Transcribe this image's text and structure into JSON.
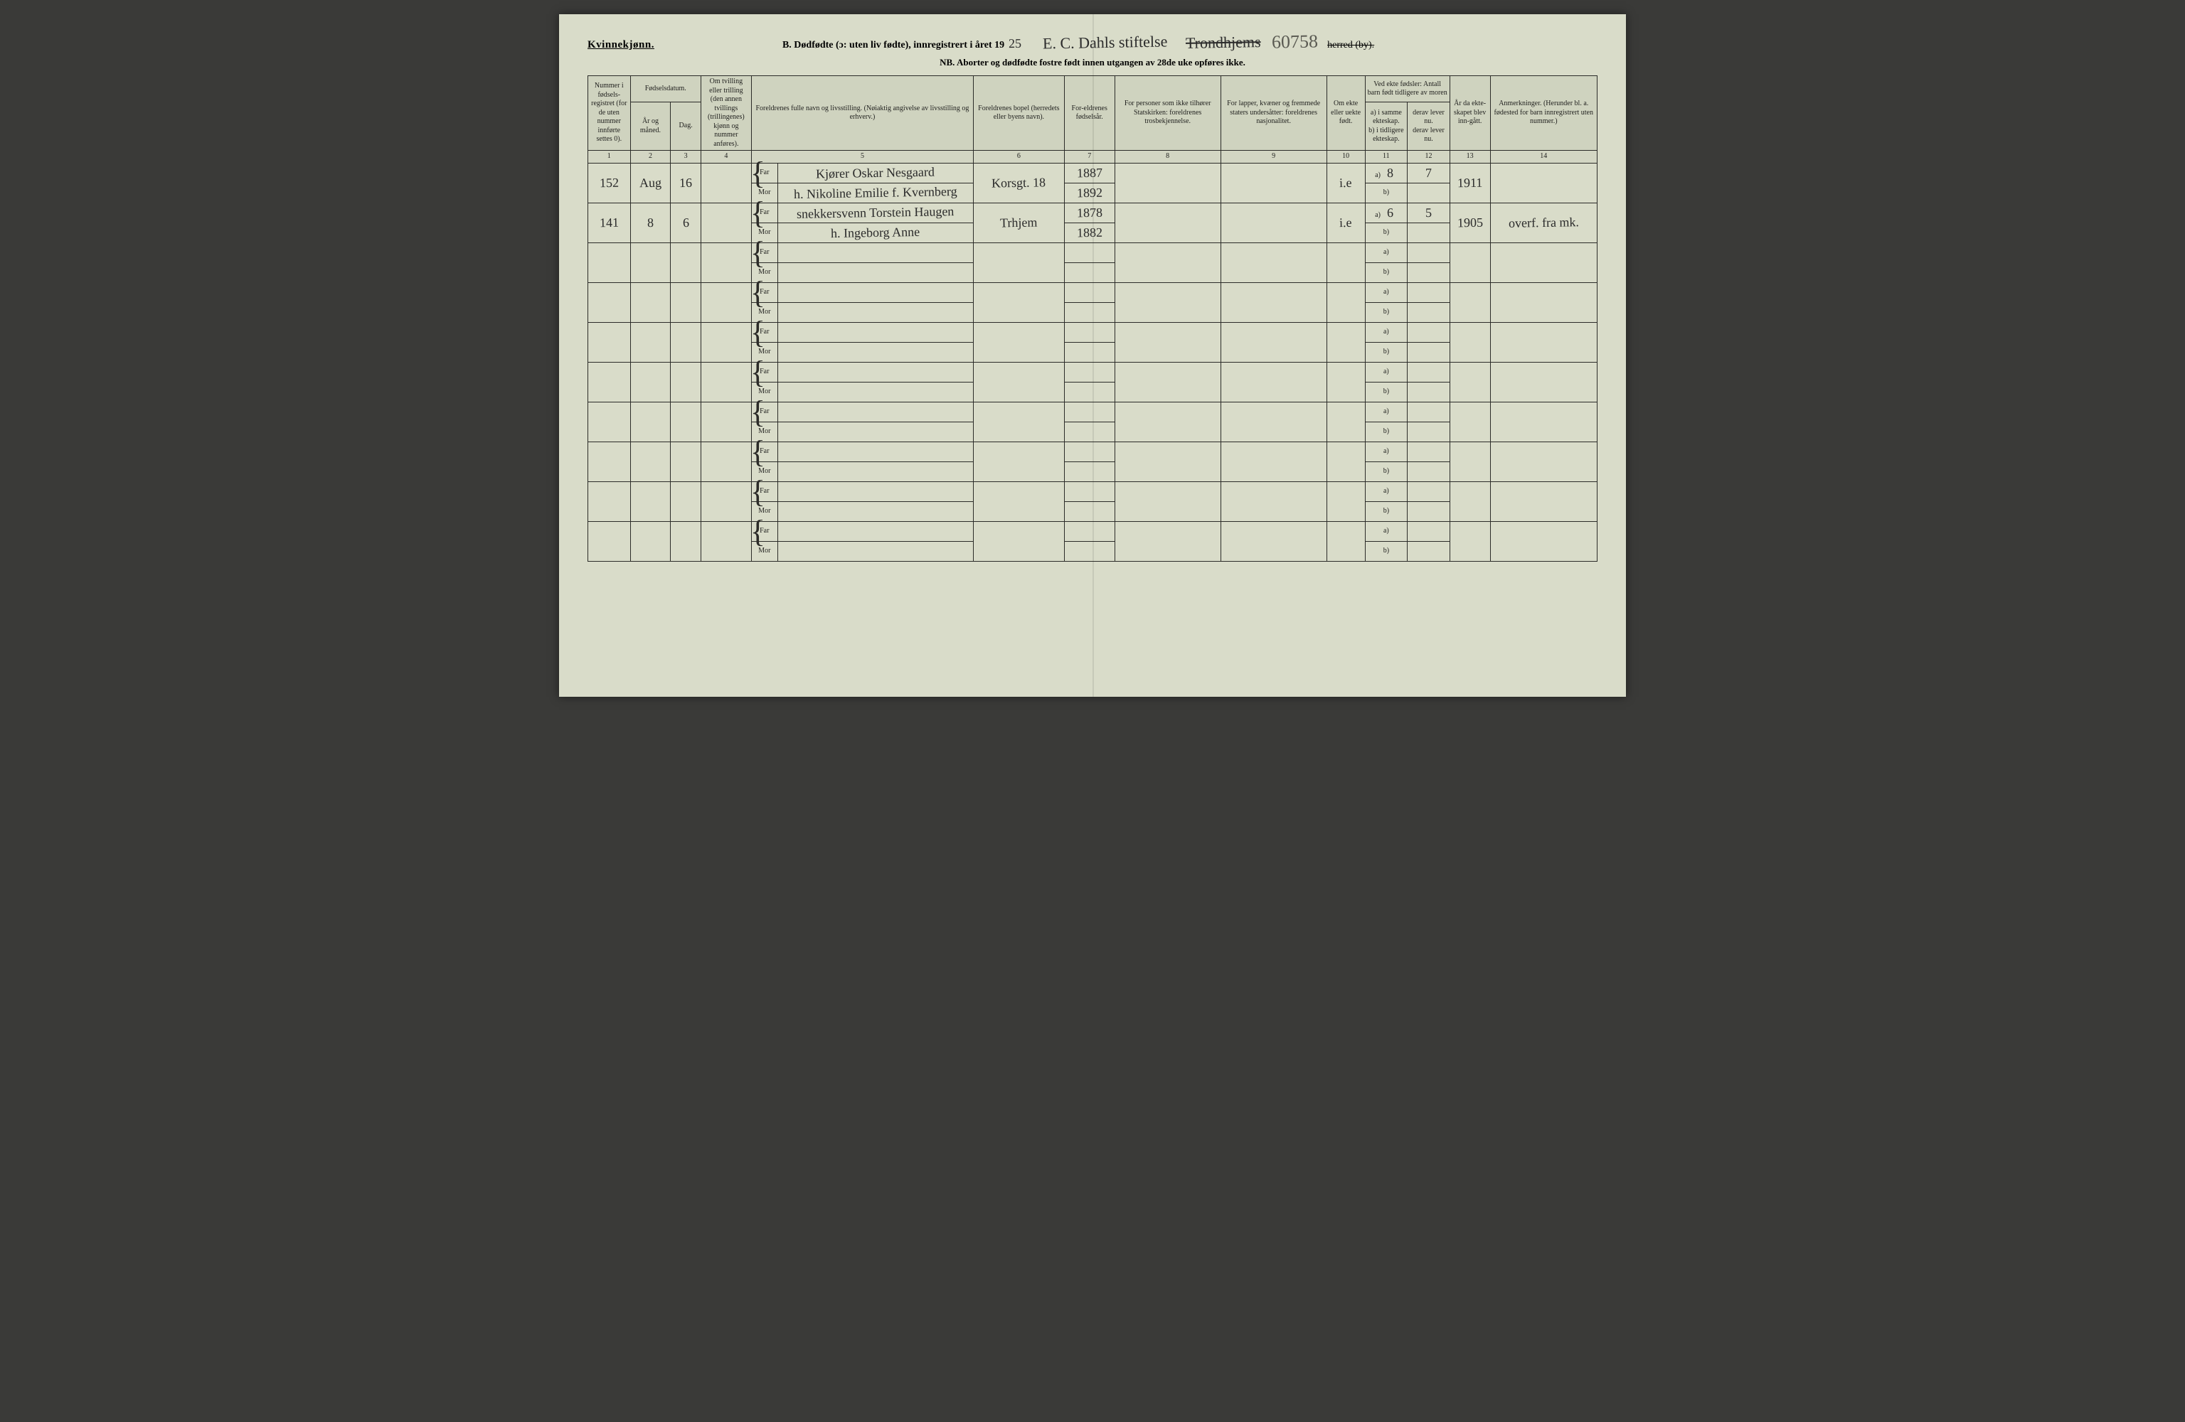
{
  "header": {
    "gender_label": "Kvinnekjønn.",
    "title_prefix": "B. Dødfødte (ɔ: uten liv fødte), innregistrert i året 19",
    "year_suffix_hw": "25",
    "parish_hw": "E. C. Dahls stiftelse",
    "district_hw_strike": "Trondhjems",
    "page_number_hw": "60758",
    "herred_label": "herred (by).",
    "nb_line": "NB. Aborter og dødfødte fostre født innen utgangen av 28de uke opføres ikke."
  },
  "columns": {
    "c1": "Nummer i fødsels-registret (for de uten nummer innførte settes 0).",
    "c2_top": "Fødselsdatum.",
    "c2a": "År og måned.",
    "c2b": "Dag.",
    "c4": "Om tvilling eller trilling (den annen tvillings (trillingenes) kjønn og nummer anføres).",
    "c5": "Foreldrenes fulle navn og livsstilling. (Nøiaktig angivelse av livsstilling og erhverv.)",
    "c6": "Foreldrenes bopel (herredets eller byens navn).",
    "c7": "For-eldrenes fødselsår.",
    "c8": "For personer som ikke tilhører Statskirken: foreldrenes trosbekjennelse.",
    "c9": "For lapper, kvæner og fremmede staters undersåtter: foreldrenes nasjonalitet.",
    "c10": "Om ekte eller uekte født.",
    "c11_top": "Ved ekte fødsler: Antall barn født tidligere av moren",
    "c11a": "a) i samme ekteskap.",
    "c11b": "b) i tidligere ekteskap.",
    "c12a": "derav lever nu.",
    "c12b": "derav lever nu.",
    "c13": "År da ekte-skapet blev inn-gått.",
    "c14": "Anmerkninger. (Herunder bl. a. fødested for barn innregistrert uten nummer.)"
  },
  "colnums": [
    "1",
    "2",
    "3",
    "4",
    "5",
    "6",
    "7",
    "8",
    "9",
    "10",
    "11",
    "12",
    "13",
    "14"
  ],
  "labels": {
    "far": "Far",
    "mor": "Mor",
    "a": "a)",
    "b": "b)"
  },
  "entries": [
    {
      "num": "152",
      "month": "Aug",
      "day": "16",
      "far_occ": "Kjører",
      "far_name": "Oskar Nesgaard",
      "mor_name": "h. Nikoline Emilie f. Kvernberg",
      "bopel": "Korsgt. 18",
      "far_year": "1887",
      "mor_year": "1892",
      "ekte": "i.e",
      "c11": "8",
      "c12": "7",
      "c13": "1911",
      "note": ""
    },
    {
      "num": "141",
      "month": "8",
      "day": "6",
      "far_occ": "snekkersvenn",
      "far_name": "Torstein Haugen",
      "mor_name": "h. Ingeborg Anne",
      "bopel": "Trhjem",
      "far_year": "1878",
      "mor_year": "1882",
      "ekte": "i.e",
      "c11": "6",
      "c12": "5",
      "c13": "1905",
      "note": "overf. fra mk."
    }
  ],
  "blank_pairs": 8,
  "style": {
    "paper_bg": "#d9dcc9",
    "ink": "#2b2b28",
    "header_bg": "#cfd3bf",
    "hw_color": "#2b2b2b",
    "hw_light": "#5a5a52",
    "print_font": "Times New Roman",
    "hw_font": "Brush Script MT",
    "base_fontsize_pt": 10,
    "header_fontsize_pt": 15,
    "col_widths_pct": [
      4.2,
      4.0,
      3.0,
      5.0,
      22.0,
      9.0,
      5.0,
      10.5,
      10.5,
      3.8,
      4.2,
      4.2,
      4.0,
      10.6
    ]
  }
}
